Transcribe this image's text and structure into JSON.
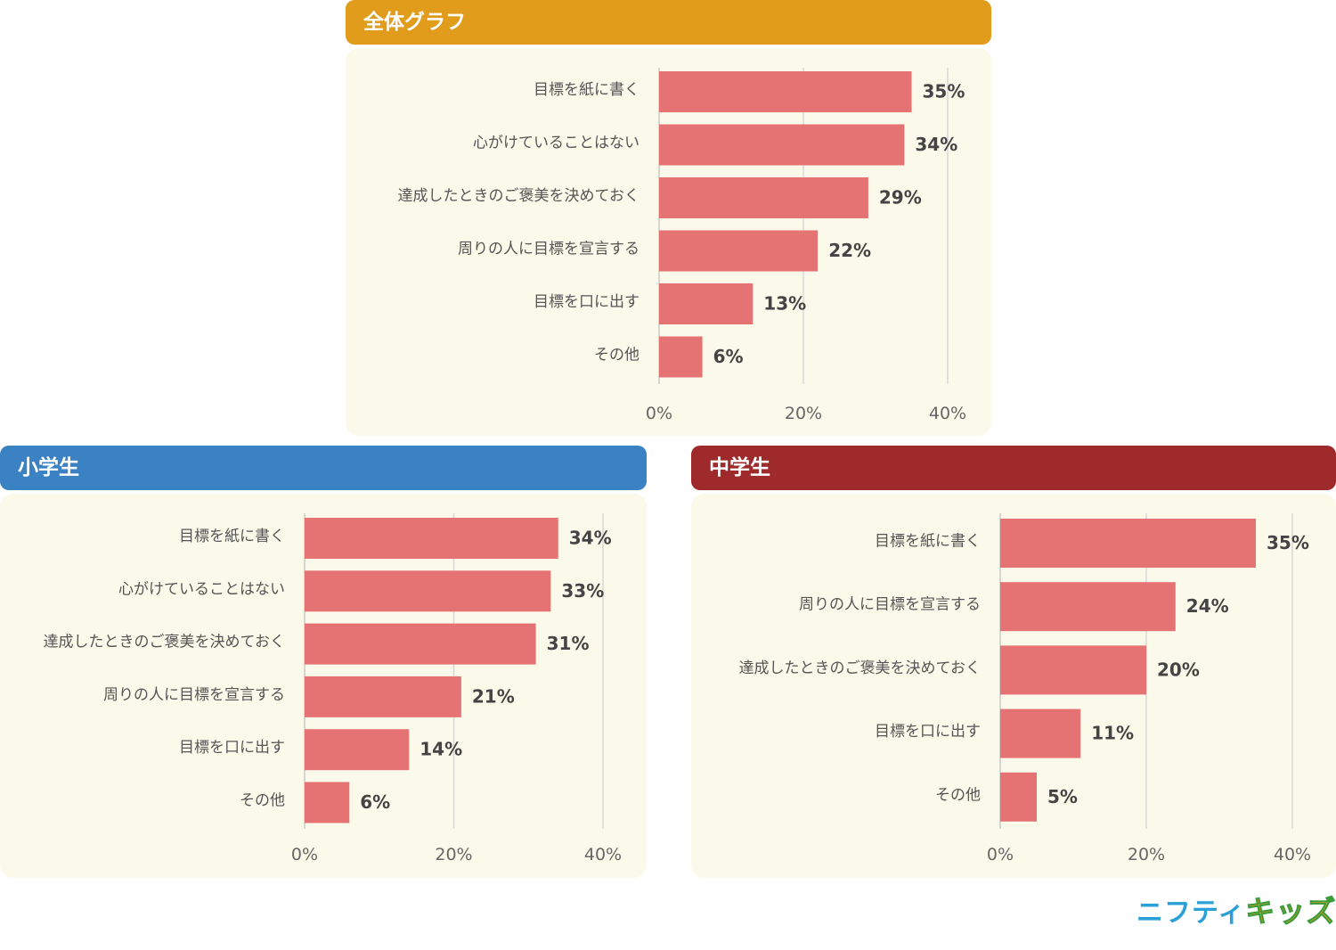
{
  "chart_data": [
    {
      "type": "bar",
      "title": "全体グラフ",
      "header_color": "#e09c1a",
      "categories": [
        "目標を紙に書く",
        "心がけていることはない",
        "達成したときのご褒美を決めておく",
        "周りの人に目標を宣言する",
        "目標を口に出す",
        "その他"
      ],
      "values": [
        35,
        34,
        29,
        22,
        13,
        6
      ],
      "value_labels": [
        "35%",
        "34%",
        "29%",
        "22%",
        "13%",
        "6%"
      ],
      "xlim": [
        0,
        40
      ],
      "ticks": [
        "0%",
        "20%",
        "40%"
      ],
      "bar_color": "#e57373",
      "grid": true
    },
    {
      "type": "bar",
      "title": "小学生",
      "header_color": "#3a82c4",
      "categories": [
        "目標を紙に書く",
        "心がけていることはない",
        "達成したときのご褒美を決めておく",
        "周りの人に目標を宣言する",
        "目標を口に出す",
        "その他"
      ],
      "values": [
        34,
        33,
        31,
        21,
        14,
        6
      ],
      "value_labels": [
        "34%",
        "33%",
        "31%",
        "21%",
        "14%",
        "6%"
      ],
      "xlim": [
        0,
        40
      ],
      "ticks": [
        "0%",
        "20%",
        "40%"
      ],
      "bar_color": "#e57373",
      "grid": true
    },
    {
      "type": "bar",
      "title": "中学生",
      "header_color": "#9e2a2b",
      "categories": [
        "目標を紙に書く",
        "周りの人に目標を宣言する",
        "達成したときのご褒美を決めておく",
        "目標を口に出す",
        "その他"
      ],
      "values": [
        35,
        24,
        20,
        11,
        5
      ],
      "value_labels": [
        "35%",
        "24%",
        "20%",
        "11%",
        "5%"
      ],
      "xlim": [
        0,
        40
      ],
      "ticks": [
        "0%",
        "20%",
        "40%"
      ],
      "bar_color": "#e57373",
      "grid": true
    }
  ],
  "logo": {
    "part1": "ニフティ",
    "part2": "キッズ"
  }
}
